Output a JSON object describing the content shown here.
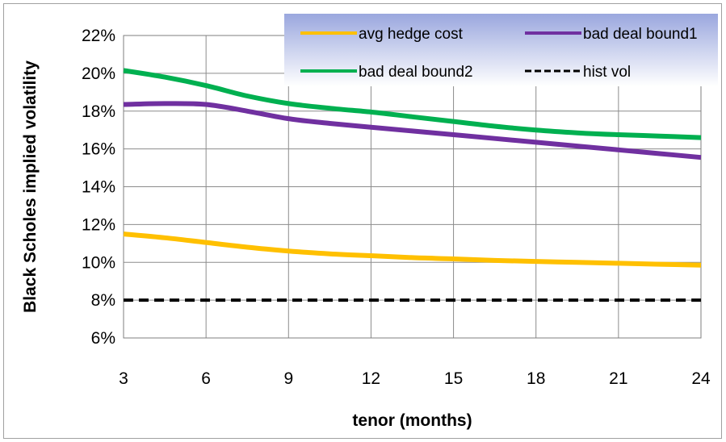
{
  "chart_data": {
    "type": "line",
    "title": "",
    "xlabel": "tenor (months)",
    "ylabel": "Black Scholes implied volatility",
    "x": [
      3,
      4.5,
      6,
      7.5,
      9,
      10.5,
      12,
      13.5,
      15,
      16.5,
      18,
      19.5,
      21,
      22.5,
      24
    ],
    "xticks": [
      "3",
      "6",
      "9",
      "12",
      "15",
      "18",
      "21",
      "24"
    ],
    "xlim": [
      3,
      24
    ],
    "yticks": [
      "6%",
      "8%",
      "10%",
      "12%",
      "14%",
      "16%",
      "18%",
      "20%",
      "22%"
    ],
    "ylim": [
      6,
      22
    ],
    "grid": true,
    "legend_position": "top-right",
    "series": [
      {
        "name": "avg hedge cost",
        "color": "#FFC000",
        "dash": "solid",
        "values": [
          11.5,
          11.3,
          11.05,
          10.8,
          10.6,
          10.45,
          10.35,
          10.25,
          10.18,
          10.1,
          10.05,
          10.0,
          9.95,
          9.9,
          9.85
        ]
      },
      {
        "name": "bad deal bound1",
        "color": "#7030A0",
        "dash": "solid",
        "values": [
          18.35,
          18.4,
          18.35,
          18.0,
          17.6,
          17.35,
          17.15,
          16.95,
          16.75,
          16.55,
          16.35,
          16.15,
          15.95,
          15.75,
          15.55
        ]
      },
      {
        "name": "bad deal bound2",
        "color": "#00B050",
        "dash": "solid",
        "values": [
          20.15,
          19.8,
          19.35,
          18.8,
          18.4,
          18.15,
          17.95,
          17.7,
          17.45,
          17.2,
          17.0,
          16.85,
          16.75,
          16.68,
          16.6
        ]
      },
      {
        "name": "hist vol",
        "color": "#000000",
        "dash": "dashed",
        "values": [
          8,
          8,
          8,
          8,
          8,
          8,
          8,
          8,
          8,
          8,
          8,
          8,
          8,
          8,
          8
        ]
      }
    ]
  }
}
